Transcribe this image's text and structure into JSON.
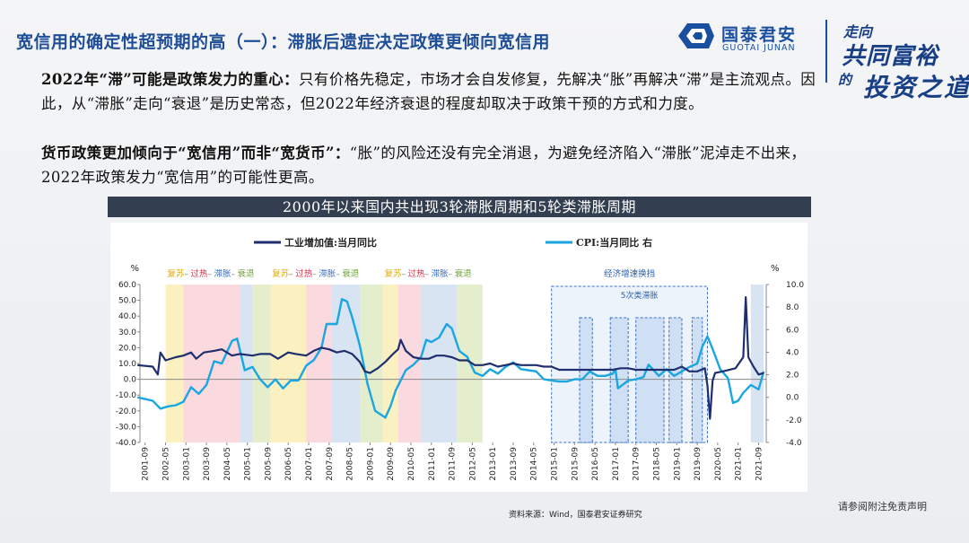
{
  "header": {
    "title": "宽信用的确定性超预期的高（一）：滞胀后遗症决定政策更倾向宽信用",
    "logo_cn": "国泰君安",
    "logo_en": "GUOTAI JUNAN",
    "slogan_top": "走向",
    "slogan_main": "共同富裕",
    "slogan_de": "的",
    "slogan_tail": "投资之道"
  },
  "para1": {
    "bold": "2022年“滞”可能是政策发力的重心：",
    "text": "只有价格先稳定，市场才会自发修复，先解决“胀”再解决“滞”是主流观点。因此，从“滞胀”走向“衰退”是历史常态，但2022年经济衰退的程度却取决于政策干预的方式和力度。"
  },
  "para2": {
    "bold": "货币政策更加倾向于“宽信用”而非“宽货币”：",
    "text": "“胀”的风险还没有完全消退，为避免经济陷入“滞胀”泥淖走不出来，2022年政策发力“宽信用”的可能性更高。"
  },
  "source": "资料来源：Wind，国泰君安证券研究",
  "disclaimer": "请参阅附注免责声明",
  "colors": {
    "title": "#1f4e96",
    "series_ip": "#1f2e6e",
    "series_cpi": "#1aa6e0",
    "recovery": "#fbf0c0",
    "overheat": "#fad9df",
    "stagflation": "#d9e4f2",
    "recession": "#e4edcc"
  },
  "chart_data": {
    "type": "line",
    "title": "2000年以来国内共出现3轮滞胀周期和5轮类滞胀周期",
    "left_axis_unit": "%",
    "right_axis_unit": "%",
    "ylim_left": [
      -40,
      60
    ],
    "yticks_left": [
      "60.0",
      "50.0",
      "40.0",
      "30.0",
      "20.0",
      "10.0",
      "0.0",
      "-10.0",
      "-20.0",
      "-30.0",
      "-40.0"
    ],
    "ylim_right": [
      -4,
      10
    ],
    "yticks_right": [
      "10.0",
      "8.0",
      "6.0",
      "4.0",
      "2.0",
      "0.0",
      "-2.0",
      "-4.0"
    ],
    "xticks": [
      "2001-09",
      "2002-05",
      "2003-01",
      "2003-09",
      "2004-05",
      "2005-01",
      "2005-09",
      "2006-05",
      "2007-01",
      "2007-09",
      "2008-05",
      "2009-01",
      "2009-09",
      "2010-05",
      "2011-01",
      "2011-09",
      "2012-05",
      "2013-01",
      "2013-09",
      "2014-05",
      "2015-01",
      "2015-09",
      "2016-05",
      "2017-01",
      "2017-09",
      "2018-05",
      "2019-01",
      "2019-09",
      "2020-05",
      "2021-01",
      "2021-09"
    ],
    "legend": [
      "工业增加值:当月同比",
      "CPI:当月同比 右"
    ],
    "phase_labels": {
      "recovery": "复苏",
      "overheat": "过热",
      "stagflation": "滞胀",
      "recession": "衰退",
      "sep": "–"
    },
    "annotations": [
      "经济增速换挡",
      "5次类滞胀"
    ],
    "phase_cycles": [
      {
        "start": "2002-05",
        "end": "2005-10",
        "phases": [
          {
            "type": "recovery",
            "start": "2002-05",
            "end": "2002-12"
          },
          {
            "type": "overheat",
            "start": "2002-12",
            "end": "2004-10"
          },
          {
            "type": "stagflation",
            "start": "2004-10",
            "end": "2005-03"
          },
          {
            "type": "recession",
            "start": "2005-03",
            "end": "2005-10"
          }
        ]
      },
      {
        "start": "2005-10",
        "end": "2009-06",
        "phases": [
          {
            "type": "recovery",
            "start": "2005-10",
            "end": "2006-12"
          },
          {
            "type": "overheat",
            "start": "2006-12",
            "end": "2007-10"
          },
          {
            "type": "stagflation",
            "start": "2007-10",
            "end": "2008-09"
          },
          {
            "type": "recession",
            "start": "2008-09",
            "end": "2009-06"
          }
        ]
      },
      {
        "start": "2009-06",
        "end": "2012-09",
        "phases": [
          {
            "type": "recovery",
            "start": "2009-06",
            "end": "2009-12"
          },
          {
            "type": "overheat",
            "start": "2009-12",
            "end": "2010-09"
          },
          {
            "type": "stagflation",
            "start": "2010-09",
            "end": "2011-11"
          },
          {
            "type": "recession",
            "start": "2011-11",
            "end": "2012-09"
          }
        ]
      }
    ],
    "pseudo_cycles": [
      {
        "start": "2015-11",
        "end": "2016-04"
      },
      {
        "start": "2016-11",
        "end": "2017-06"
      },
      {
        "start": "2017-09",
        "end": "2018-08"
      },
      {
        "start": "2018-10",
        "end": "2019-03"
      },
      {
        "start": "2019-07",
        "end": "2019-11"
      }
    ],
    "gear_shift_period": {
      "start": "2014-12",
      "end": "2020-01"
    },
    "right_edge_band": {
      "start": "2021-06",
      "end": "2021-11"
    },
    "series": [
      {
        "name": "工业增加值:当月同比",
        "axis": "left",
        "points": [
          [
            "2001-06",
            9
          ],
          [
            "2001-12",
            8
          ],
          [
            "2002-02",
            3
          ],
          [
            "2002-03",
            17
          ],
          [
            "2002-05",
            12
          ],
          [
            "2002-09",
            14
          ],
          [
            "2002-12",
            15
          ],
          [
            "2003-03",
            17
          ],
          [
            "2003-05",
            13
          ],
          [
            "2003-08",
            17
          ],
          [
            "2003-12",
            18
          ],
          [
            "2004-03",
            19
          ],
          [
            "2004-07",
            15
          ],
          [
            "2004-10",
            16
          ],
          [
            "2005-03",
            15
          ],
          [
            "2005-06",
            16
          ],
          [
            "2005-10",
            16
          ],
          [
            "2006-01",
            13
          ],
          [
            "2006-05",
            17
          ],
          [
            "2006-08",
            16
          ],
          [
            "2006-12",
            15
          ],
          [
            "2007-03",
            18
          ],
          [
            "2007-06",
            20
          ],
          [
            "2007-09",
            19
          ],
          [
            "2007-12",
            17
          ],
          [
            "2008-03",
            18
          ],
          [
            "2008-06",
            16
          ],
          [
            "2008-09",
            11
          ],
          [
            "2008-11",
            5
          ],
          [
            "2009-01",
            4
          ],
          [
            "2009-04",
            7
          ],
          [
            "2009-07",
            11
          ],
          [
            "2009-10",
            16
          ],
          [
            "2009-12",
            19
          ],
          [
            "2010-01",
            25
          ],
          [
            "2010-03",
            18
          ],
          [
            "2010-06",
            14
          ],
          [
            "2010-09",
            13
          ],
          [
            "2010-12",
            13
          ],
          [
            "2011-03",
            15
          ],
          [
            "2011-06",
            15
          ],
          [
            "2011-09",
            14
          ],
          [
            "2011-12",
            12
          ],
          [
            "2012-03",
            12
          ],
          [
            "2012-06",
            9
          ],
          [
            "2012-09",
            9
          ],
          [
            "2012-12",
            10
          ],
          [
            "2013-03",
            8
          ],
          [
            "2013-06",
            9
          ],
          [
            "2013-09",
            10
          ],
          [
            "2013-12",
            9
          ],
          [
            "2014-03",
            9
          ],
          [
            "2014-06",
            9
          ],
          [
            "2014-09",
            8
          ],
          [
            "2014-12",
            8
          ],
          [
            "2015-03",
            6
          ],
          [
            "2015-06",
            6
          ],
          [
            "2015-09",
            6
          ],
          [
            "2015-12",
            6
          ],
          [
            "2016-03",
            6
          ],
          [
            "2016-06",
            6
          ],
          [
            "2016-09",
            6
          ],
          [
            "2016-12",
            6
          ],
          [
            "2017-03",
            7
          ],
          [
            "2017-06",
            7
          ],
          [
            "2017-09",
            6
          ],
          [
            "2017-12",
            6
          ],
          [
            "2018-03",
            6
          ],
          [
            "2018-06",
            6
          ],
          [
            "2018-09",
            6
          ],
          [
            "2018-12",
            6
          ],
          [
            "2019-03",
            8
          ],
          [
            "2019-06",
            5
          ],
          [
            "2019-09",
            5
          ],
          [
            "2019-12",
            7
          ],
          [
            "2020-01",
            -4
          ],
          [
            "2020-02",
            -25
          ],
          [
            "2020-03",
            -1
          ],
          [
            "2020-04",
            4
          ],
          [
            "2020-07",
            5
          ],
          [
            "2020-12",
            7
          ],
          [
            "2021-03",
            14
          ],
          [
            "2021-04",
            52
          ],
          [
            "2021-05",
            14
          ],
          [
            "2021-07",
            8
          ],
          [
            "2021-09",
            3
          ],
          [
            "2021-11",
            4
          ]
        ]
      },
      {
        "name": "CPI:当月同比 右",
        "axis": "right",
        "points": [
          [
            "2001-06",
            0
          ],
          [
            "2001-12",
            -0.3
          ],
          [
            "2002-03",
            -1
          ],
          [
            "2002-06",
            -0.8
          ],
          [
            "2002-09",
            -0.7
          ],
          [
            "2002-12",
            -0.4
          ],
          [
            "2003-03",
            0.9
          ],
          [
            "2003-06",
            0.3
          ],
          [
            "2003-09",
            1.1
          ],
          [
            "2003-12",
            3.2
          ],
          [
            "2004-03",
            3
          ],
          [
            "2004-07",
            5
          ],
          [
            "2004-09",
            5.2
          ],
          [
            "2004-12",
            2.4
          ],
          [
            "2005-03",
            2.7
          ],
          [
            "2005-06",
            1.6
          ],
          [
            "2005-09",
            0.9
          ],
          [
            "2005-12",
            1.6
          ],
          [
            "2006-03",
            0.8
          ],
          [
            "2006-06",
            1.5
          ],
          [
            "2006-09",
            1.5
          ],
          [
            "2006-12",
            2.8
          ],
          [
            "2007-03",
            3.3
          ],
          [
            "2007-06",
            4.4
          ],
          [
            "2007-08",
            6.5
          ],
          [
            "2007-12",
            6.5
          ],
          [
            "2008-02",
            8.7
          ],
          [
            "2008-04",
            8.5
          ],
          [
            "2008-06",
            7.1
          ],
          [
            "2008-09",
            4.6
          ],
          [
            "2008-12",
            1.2
          ],
          [
            "2009-03",
            -1.2
          ],
          [
            "2009-07",
            -1.8
          ],
          [
            "2009-09",
            -0.8
          ],
          [
            "2009-11",
            0.6
          ],
          [
            "2010-01",
            1.5
          ],
          [
            "2010-03",
            2.4
          ],
          [
            "2010-06",
            2.9
          ],
          [
            "2010-09",
            3.6
          ],
          [
            "2010-11",
            5.1
          ],
          [
            "2011-01",
            4.9
          ],
          [
            "2011-04",
            5.3
          ],
          [
            "2011-07",
            6.5
          ],
          [
            "2011-09",
            6.1
          ],
          [
            "2011-12",
            4.1
          ],
          [
            "2012-03",
            3.6
          ],
          [
            "2012-06",
            2.2
          ],
          [
            "2012-09",
            1.9
          ],
          [
            "2012-12",
            2.5
          ],
          [
            "2013-03",
            2.1
          ],
          [
            "2013-06",
            2.7
          ],
          [
            "2013-09",
            3.1
          ],
          [
            "2013-12",
            2.5
          ],
          [
            "2014-03",
            2.4
          ],
          [
            "2014-06",
            2.3
          ],
          [
            "2014-09",
            1.6
          ],
          [
            "2014-12",
            1.5
          ],
          [
            "2015-03",
            1.4
          ],
          [
            "2015-06",
            1.4
          ],
          [
            "2015-09",
            1.6
          ],
          [
            "2015-12",
            1.6
          ],
          [
            "2016-03",
            2.3
          ],
          [
            "2016-06",
            1.9
          ],
          [
            "2016-09",
            1.9
          ],
          [
            "2016-12",
            2.1
          ],
          [
            "2017-01",
            2.5
          ],
          [
            "2017-02",
            0.8
          ],
          [
            "2017-06",
            1.5
          ],
          [
            "2017-09",
            1.6
          ],
          [
            "2017-12",
            1.8
          ],
          [
            "2018-02",
            2.9
          ],
          [
            "2018-06",
            1.9
          ],
          [
            "2018-09",
            2.5
          ],
          [
            "2018-12",
            1.9
          ],
          [
            "2019-03",
            2.3
          ],
          [
            "2019-06",
            2.7
          ],
          [
            "2019-09",
            3
          ],
          [
            "2019-11",
            4.5
          ],
          [
            "2020-01",
            5.4
          ],
          [
            "2020-03",
            4.3
          ],
          [
            "2020-06",
            2.5
          ],
          [
            "2020-09",
            1.7
          ],
          [
            "2020-11",
            -0.5
          ],
          [
            "2021-01",
            -0.3
          ],
          [
            "2021-03",
            0.4
          ],
          [
            "2021-06",
            1.1
          ],
          [
            "2021-09",
            0.7
          ],
          [
            "2021-11",
            2.3
          ]
        ]
      }
    ]
  }
}
